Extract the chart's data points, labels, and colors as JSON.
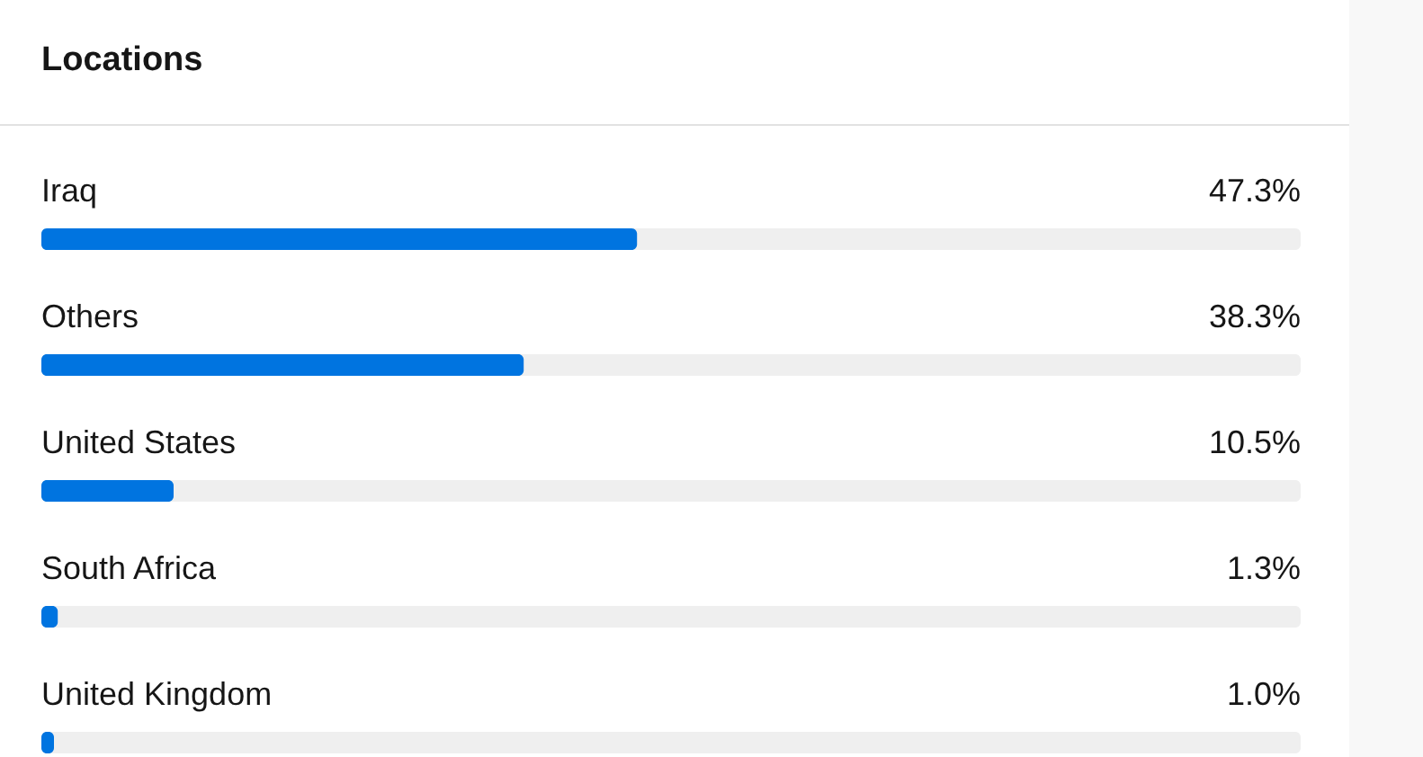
{
  "chart_data": {
    "type": "bar",
    "orientation": "horizontal",
    "title": "Locations",
    "categories": [
      "Iraq",
      "Others",
      "United States",
      "South Africa",
      "United Kingdom"
    ],
    "values": [
      47.3,
      38.3,
      10.5,
      1.3,
      1.0
    ],
    "value_labels": [
      "47.3%",
      "38.3%",
      "10.5%",
      "1.3%",
      "1.0%"
    ],
    "color": "#0074e0",
    "xlim": [
      0,
      100
    ],
    "tick_labels": "y"
  }
}
